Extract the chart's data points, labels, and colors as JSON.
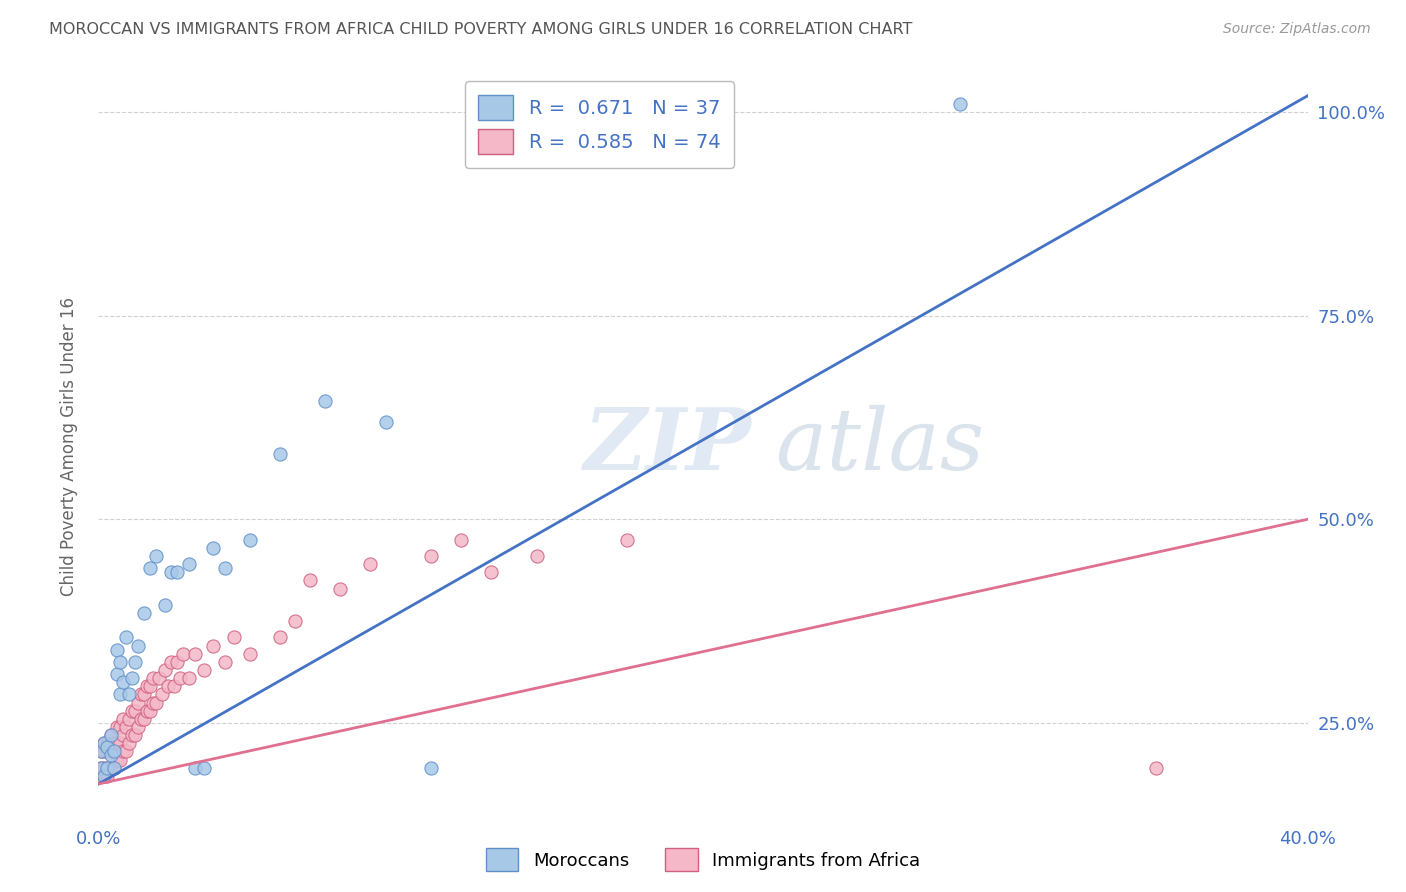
{
  "title": "MOROCCAN VS IMMIGRANTS FROM AFRICA CHILD POVERTY AMONG GIRLS UNDER 16 CORRELATION CHART",
  "source": "Source: ZipAtlas.com",
  "ylabel": "Child Poverty Among Girls Under 16",
  "background_color": "#ffffff",
  "moroccan_color": "#a8c8e8",
  "african_color": "#f4b8c8",
  "moroccan_line_color": "#4472c4",
  "african_line_color": "#e07090",
  "moroccan_edge_color": "#6090c8",
  "african_edge_color": "#d06080",
  "R_moroccan": 0.671,
  "N_moroccan": 37,
  "R_african": 0.585,
  "N_african": 74,
  "moroccan_x": [
    0.001,
    0.001,
    0.002,
    0.002,
    0.003,
    0.003,
    0.004,
    0.004,
    0.005,
    0.005,
    0.006,
    0.006,
    0.007,
    0.007,
    0.008,
    0.009,
    0.01,
    0.011,
    0.012,
    0.013,
    0.015,
    0.017,
    0.019,
    0.022,
    0.024,
    0.026,
    0.03,
    0.032,
    0.035,
    0.038,
    0.042,
    0.05,
    0.06,
    0.075,
    0.095,
    0.11,
    0.285
  ],
  "moroccan_y": [
    0.195,
    0.215,
    0.185,
    0.225,
    0.195,
    0.22,
    0.21,
    0.235,
    0.195,
    0.215,
    0.31,
    0.34,
    0.285,
    0.325,
    0.3,
    0.355,
    0.285,
    0.305,
    0.325,
    0.345,
    0.385,
    0.44,
    0.455,
    0.395,
    0.435,
    0.435,
    0.445,
    0.195,
    0.195,
    0.465,
    0.44,
    0.475,
    0.58,
    0.645,
    0.62,
    0.195,
    1.01
  ],
  "african_x": [
    0.001,
    0.001,
    0.001,
    0.002,
    0.002,
    0.002,
    0.002,
    0.003,
    0.003,
    0.003,
    0.003,
    0.004,
    0.004,
    0.004,
    0.005,
    0.005,
    0.005,
    0.006,
    0.006,
    0.006,
    0.007,
    0.007,
    0.007,
    0.008,
    0.008,
    0.008,
    0.009,
    0.009,
    0.01,
    0.01,
    0.011,
    0.011,
    0.012,
    0.012,
    0.013,
    0.013,
    0.014,
    0.014,
    0.015,
    0.015,
    0.016,
    0.016,
    0.017,
    0.017,
    0.018,
    0.018,
    0.019,
    0.02,
    0.021,
    0.022,
    0.023,
    0.024,
    0.025,
    0.026,
    0.027,
    0.028,
    0.03,
    0.032,
    0.035,
    0.038,
    0.042,
    0.045,
    0.05,
    0.06,
    0.065,
    0.07,
    0.08,
    0.09,
    0.11,
    0.12,
    0.13,
    0.145,
    0.175,
    0.35
  ],
  "african_y": [
    0.185,
    0.195,
    0.215,
    0.185,
    0.195,
    0.215,
    0.225,
    0.185,
    0.195,
    0.215,
    0.225,
    0.195,
    0.215,
    0.235,
    0.195,
    0.215,
    0.225,
    0.205,
    0.225,
    0.245,
    0.205,
    0.225,
    0.245,
    0.215,
    0.235,
    0.255,
    0.215,
    0.245,
    0.225,
    0.255,
    0.235,
    0.265,
    0.235,
    0.265,
    0.245,
    0.275,
    0.255,
    0.285,
    0.255,
    0.285,
    0.265,
    0.295,
    0.265,
    0.295,
    0.275,
    0.305,
    0.275,
    0.305,
    0.285,
    0.315,
    0.295,
    0.325,
    0.295,
    0.325,
    0.305,
    0.335,
    0.305,
    0.335,
    0.315,
    0.345,
    0.325,
    0.355,
    0.335,
    0.355,
    0.375,
    0.425,
    0.415,
    0.445,
    0.455,
    0.475,
    0.435,
    0.455,
    0.475,
    0.195
  ],
  "moroccan_line_pts": [
    [
      0.0,
      0.175
    ],
    [
      0.4,
      1.02
    ]
  ],
  "african_line_pts": [
    [
      0.0,
      0.175
    ],
    [
      0.4,
      0.5
    ]
  ],
  "xlim": [
    0.0,
    0.4
  ],
  "ylim": [
    0.13,
    1.05
  ],
  "ytick_vals": [
    0.25,
    0.5,
    0.75,
    1.0
  ],
  "ytick_labels": [
    "25.0%",
    "50.0%",
    "75.0%",
    "100.0%"
  ],
  "grid_color": "#cccccc",
  "title_color": "#555555",
  "axis_color": "#4472c4",
  "legend_label1": "Moroccans",
  "legend_label2": "Immigrants from Africa"
}
